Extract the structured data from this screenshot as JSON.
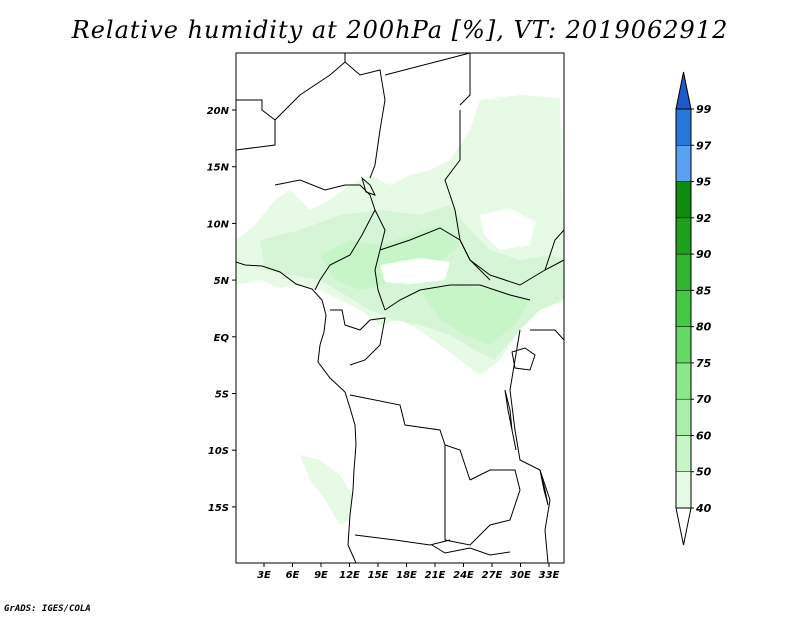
{
  "title": "Relative humidity at 200hPa [%], VT: 2019062912",
  "credit": "GrADS: IGES/COLA",
  "map": {
    "lat_ticks": [
      "20N",
      "15N",
      "10N",
      "5N",
      "EQ",
      "5S",
      "10S",
      "15S"
    ],
    "lon_ticks": [
      "3E",
      "6E",
      "9E",
      "12E",
      "15E",
      "18E",
      "21E",
      "24E",
      "27E",
      "30E",
      "33E"
    ]
  },
  "colorbar": {
    "labels": [
      "40",
      "50",
      "60",
      "70",
      "75",
      "80",
      "85",
      "90",
      "92",
      "95",
      "97",
      "99"
    ],
    "colors": [
      "#ffffff",
      "#e6fae6",
      "#c8f5c8",
      "#aaeeaa",
      "#8ce68c",
      "#64d764",
      "#46c846",
      "#32b432",
      "#1ea01e",
      "#0f8c0f",
      "#5aa0f0",
      "#2878dc",
      "#1e5ac8"
    ]
  }
}
